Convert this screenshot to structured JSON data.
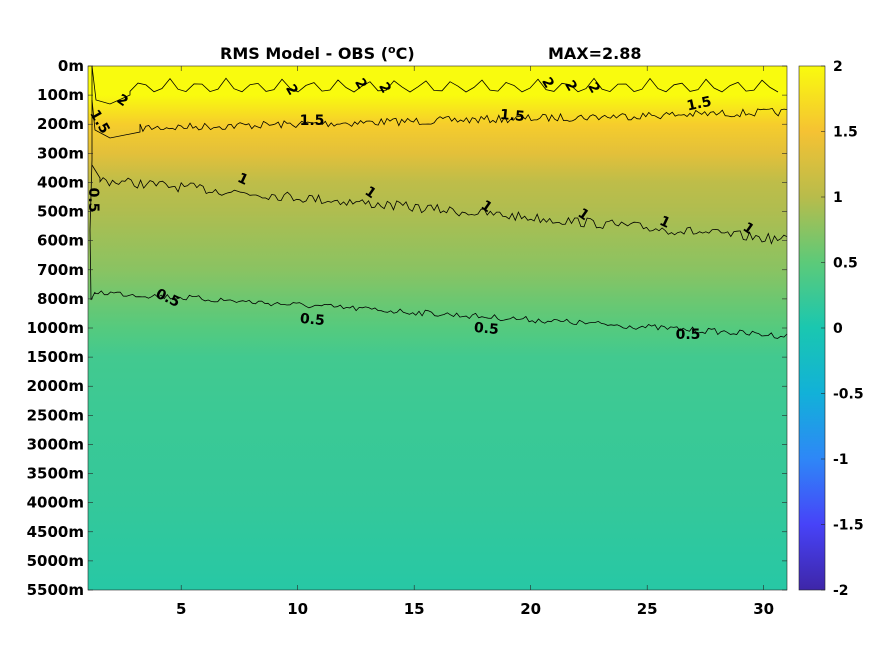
{
  "chart_data": {
    "type": "heatmap",
    "title": "RMS Model - OBS (",
    "title_unit_sup": "o",
    "title_unit_tail": "C)",
    "max_label": "MAX=2.88",
    "xlabel": "",
    "ylabel": "",
    "x_ticks": [
      "5",
      "10",
      "15",
      "20",
      "25",
      "30"
    ],
    "x_tick_values": [
      5,
      10,
      15,
      20,
      25,
      30
    ],
    "xlim": [
      1,
      31
    ],
    "y_tick_labels": [
      "0m",
      "100m",
      "200m",
      "300m",
      "400m",
      "500m",
      "600m",
      "700m",
      "800m",
      "1000m",
      "1500m",
      "2000m",
      "2500m",
      "3000m",
      "3500m",
      "4000m",
      "4500m",
      "5000m",
      "5500m"
    ],
    "colorbar": {
      "ticks": [
        "2",
        "1.5",
        "1",
        "0.5",
        "0",
        "-0.5",
        "-1",
        "-1.5",
        "-2"
      ],
      "tick_values": [
        2,
        1.5,
        1,
        0.5,
        0,
        -0.5,
        -1,
        -1.5,
        -2
      ],
      "range": [
        -2,
        2
      ],
      "colormap": "parula",
      "colors": [
        "#3e26a8",
        "#4743f8",
        "#2e87f7",
        "#12b1d8",
        "#1ac7b0",
        "#5cca79",
        "#b8bc4b",
        "#f5c233",
        "#f9fb0e"
      ]
    },
    "rms_profile": [
      {
        "depth_index": 0,
        "value": 2.2
      },
      {
        "depth_index": 1,
        "value": 2.0
      },
      {
        "depth_index": 2,
        "value": 1.6
      },
      {
        "depth_index": 3,
        "value": 1.35
      },
      {
        "depth_index": 4,
        "value": 1.05
      },
      {
        "depth_index": 5,
        "value": 0.95
      },
      {
        "depth_index": 6,
        "value": 0.85
      },
      {
        "depth_index": 7,
        "value": 0.75
      },
      {
        "depth_index": 8,
        "value": 0.6
      },
      {
        "depth_index": 9,
        "value": 0.45
      },
      {
        "depth_index": 10,
        "value": 0.3
      },
      {
        "depth_index": 12,
        "value": 0.25
      },
      {
        "depth_index": 15,
        "value": 0.2
      },
      {
        "depth_index": 18,
        "value": 0.1
      }
    ],
    "contours": [
      {
        "level": "2",
        "labels": [
          "2",
          "2",
          "2",
          "2",
          "2",
          "2",
          "2"
        ]
      },
      {
        "level": "1.5",
        "labels": [
          "1.5",
          "1.5",
          "1.5",
          "1.5"
        ]
      },
      {
        "level": "1",
        "labels": [
          "1",
          "1",
          "1",
          "1",
          "1",
          "1"
        ]
      },
      {
        "level": "0.5",
        "labels": [
          "0.5",
          "0.5",
          "0.5",
          "0.5",
          "0.5"
        ]
      }
    ]
  }
}
